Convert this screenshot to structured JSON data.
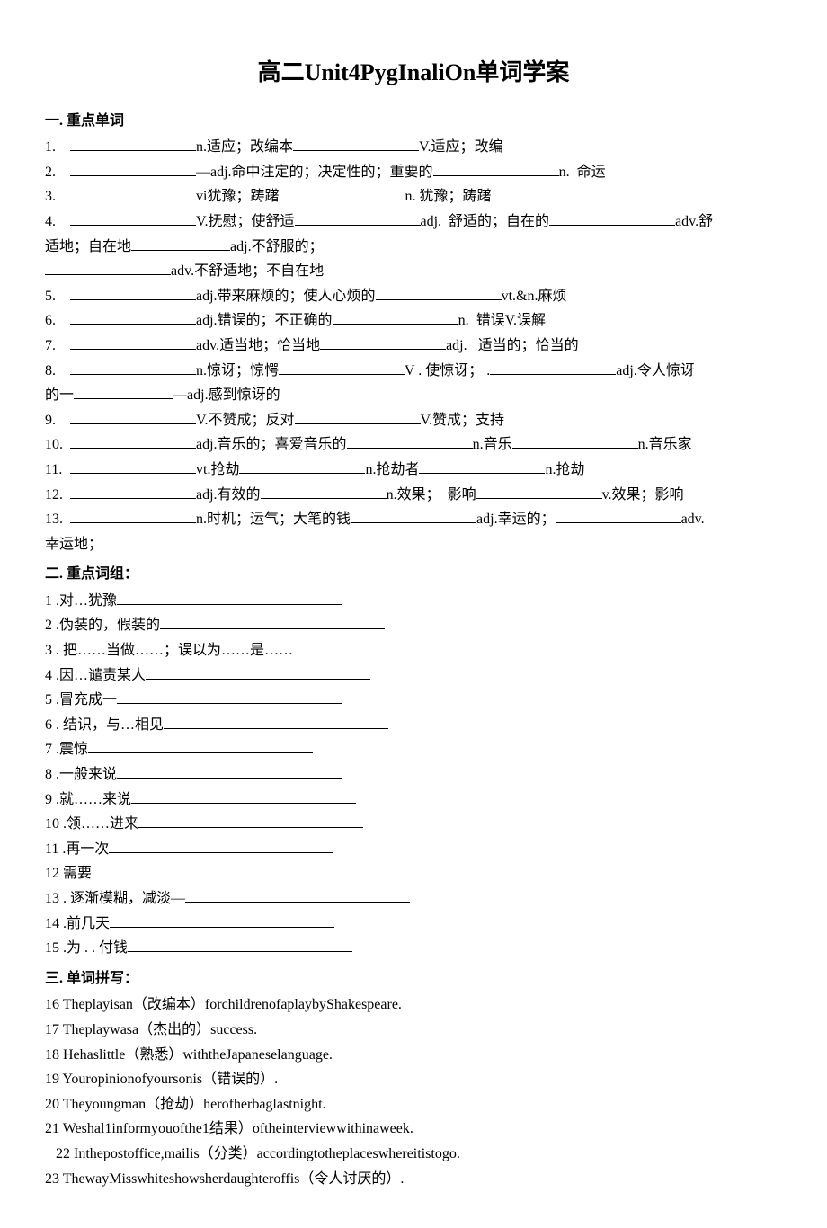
{
  "title": "高二Unit4PygInaliOn单词学案",
  "sections": {
    "s1_header": "一. 重点单词",
    "s2_header": "二. 重点词组：",
    "s3_header": "三. 单词拼写："
  },
  "vocab": [
    {
      "num": "1.",
      "parts": [
        "n.适应；改编本",
        "V.适应；改编"
      ]
    },
    {
      "num": "2.",
      "parts": [
        "—adj.命中注定的；决定性的；重要的",
        "n.  命运"
      ]
    },
    {
      "num": "3.",
      "parts": [
        "vi犹豫；踌躇",
        "n. 犹豫；踌躇"
      ]
    },
    {
      "num": "4.",
      "parts": [
        "V.抚慰；使舒适",
        "adj.  舒适的；自在的",
        "adv.舒"
      ],
      "cont1": "适地；自在地",
      "cont1b": "adj.不舒服的；",
      "cont2": "adv.不舒适地；不自在地"
    },
    {
      "num": "5.",
      "parts": [
        "adj.带来麻烦的；使人心烦的",
        "vt.&n.麻烦"
      ]
    },
    {
      "num": "6.",
      "parts": [
        "adj.错误的；不正确的",
        "n.  错误V.误解"
      ]
    },
    {
      "num": "7.",
      "parts": [
        "adv.适当地；恰当地",
        "adj.   适当的；恰当的"
      ]
    },
    {
      "num": "8.",
      "parts": [
        "n.惊讶；惊愕",
        "V . 使惊讶； .",
        "adj.令人惊讶"
      ],
      "cont1": "的一",
      "cont1b": "—adj.感到惊讶的"
    },
    {
      "num": "9.",
      "parts": [
        "V.不赞成；反对",
        "V.赞成；支持"
      ]
    },
    {
      "num": "10.",
      "parts": [
        "adj.音乐的；喜爱音乐的",
        "n.音乐",
        "n.音乐家"
      ]
    },
    {
      "num": "11.",
      "parts": [
        "vt.抢劫",
        "n.抢劫者",
        "n.抢劫"
      ]
    },
    {
      "num": "12.",
      "parts": [
        "adj.有效的",
        "n.效果；  影响",
        "v.效果；影响"
      ]
    },
    {
      "num": "13.",
      "parts": [
        "n.时机；运气；大笔的钱",
        "adj.幸运的；",
        "adv."
      ],
      "cont1": "幸运地；"
    }
  ],
  "phrases": [
    {
      "num": "1",
      "text": ".对…犹豫"
    },
    {
      "num": "2",
      "text": ".伪装的，假装的"
    },
    {
      "num": "3",
      "text": ". 把……当做……；误以为……是……"
    },
    {
      "num": "4",
      "text": ".因…谴责某人"
    },
    {
      "num": "5",
      "text": ".冒充成一"
    },
    {
      "num": "6",
      "text": ". 结识，与…相见"
    },
    {
      "num": "7",
      "text": ".震惊"
    },
    {
      "num": "8",
      "text": ".一般来说"
    },
    {
      "num": "9",
      "text": ".就……来说"
    },
    {
      "num": "10",
      "text": ".领……进来"
    },
    {
      "num": "11",
      "text": ".再一次"
    },
    {
      "num": "12",
      "text": "需要",
      "no_blank": true
    },
    {
      "num": "13",
      "text": ". 逐渐模糊，减淡—"
    },
    {
      "num": "14",
      "text": ".前几天"
    },
    {
      "num": "15",
      "text": ".为 . . 付钱"
    }
  ],
  "sentences": [
    {
      "num": "16",
      "text": "Theplayisan（改编本）forchildrenofaplaybyShakespeare."
    },
    {
      "num": "17",
      "text": "  Theplaywasa（杰出的）success."
    },
    {
      "num": "18",
      "text": "Hehaslittle（熟悉）withtheJapaneselanguage."
    },
    {
      "num": "19",
      "text": "Youropinionofyoursonis（错误的）."
    },
    {
      "num": "20",
      "text": "  Theyoungman（抢劫）herofherbaglastnight."
    },
    {
      "num": "21",
      "text": "  Weshal1informyouofthe1结果）oftheinterviewwithinaweek."
    },
    {
      "num": "22",
      "text": "Inthepostoffice,mailis（分类）accordingtotheplaceswhereitistogo.",
      "indent": true
    },
    {
      "num": "23",
      "text": "  ThewayMisswhiteshowsherdaughteroffis（令人讨厌的）."
    }
  ],
  "colors": {
    "text": "#000000",
    "background": "#ffffff",
    "underline": "#000000"
  },
  "typography": {
    "title_fontsize": 26,
    "body_fontsize": 16,
    "font_family": "SimSun"
  }
}
